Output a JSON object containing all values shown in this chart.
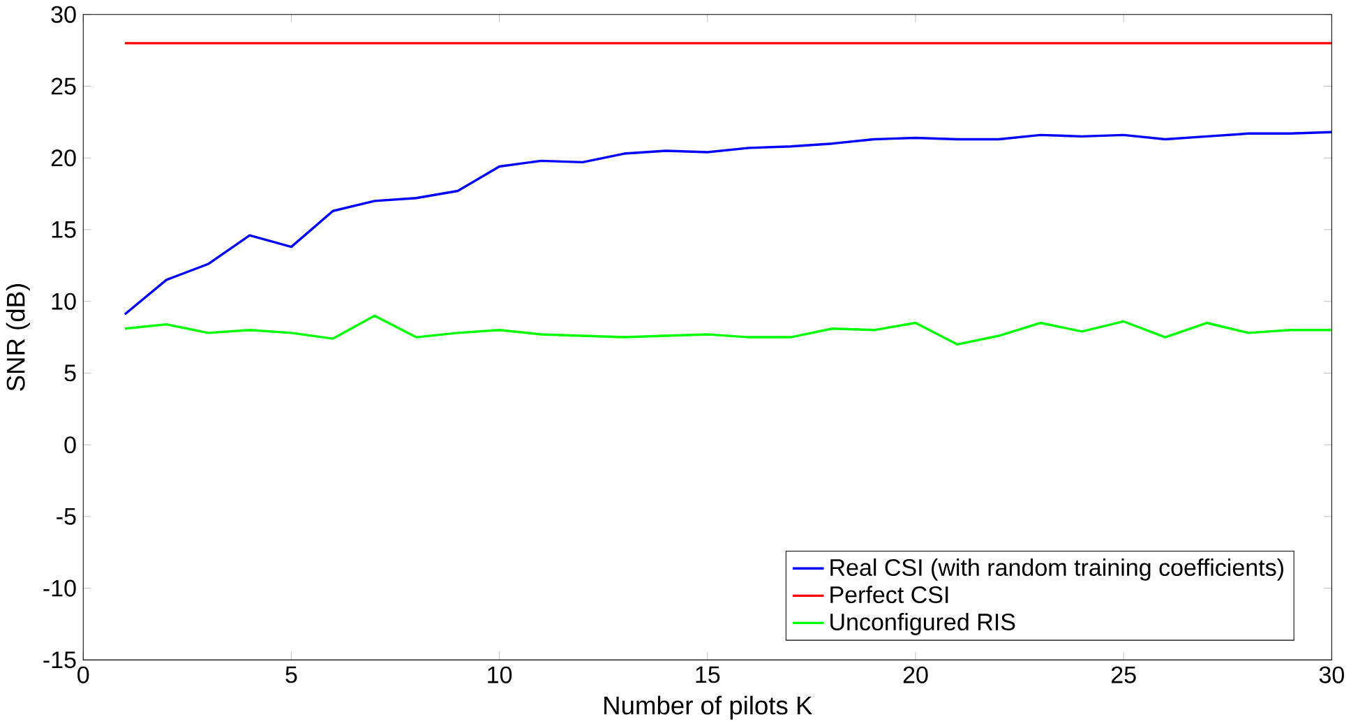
{
  "chart_data": {
    "type": "line",
    "xlabel": "Number of pilots K",
    "ylabel": "SNR (dB)",
    "x": [
      1,
      2,
      3,
      4,
      5,
      6,
      7,
      8,
      9,
      10,
      11,
      12,
      13,
      14,
      15,
      16,
      17,
      18,
      19,
      20,
      21,
      22,
      23,
      24,
      25,
      26,
      27,
      28,
      29,
      30
    ],
    "series": [
      {
        "name": "Real CSI (with random training coefficients)",
        "color": "#0000ff",
        "values": [
          9.1,
          11.5,
          12.6,
          14.6,
          13.8,
          16.3,
          17.0,
          17.2,
          17.7,
          19.4,
          19.8,
          19.7,
          20.3,
          20.5,
          20.4,
          20.7,
          20.8,
          21.0,
          21.3,
          21.4,
          21.3,
          21.3,
          21.6,
          21.5,
          21.6,
          21.3,
          21.5,
          21.7,
          21.7,
          21.8
        ]
      },
      {
        "name": "Perfect CSI",
        "color": "#ff0000",
        "values": [
          28,
          28,
          28,
          28,
          28,
          28,
          28,
          28,
          28,
          28,
          28,
          28,
          28,
          28,
          28,
          28,
          28,
          28,
          28,
          28,
          28,
          28,
          28,
          28,
          28,
          28,
          28,
          28,
          28,
          28
        ]
      },
      {
        "name": "Unconfigured RIS",
        "color": "#00ff00",
        "values": [
          8.1,
          8.4,
          7.8,
          8.0,
          7.8,
          7.4,
          9.0,
          7.5,
          7.8,
          8.0,
          7.7,
          7.6,
          7.5,
          7.6,
          7.7,
          7.5,
          7.5,
          8.1,
          8.0,
          8.5,
          7.0,
          7.6,
          8.5,
          7.9,
          8.6,
          7.5,
          8.5,
          7.8,
          8.0,
          8.0
        ]
      }
    ],
    "xlim": [
      0,
      30
    ],
    "ylim": [
      -15,
      30
    ],
    "xticks": [
      0,
      5,
      10,
      15,
      20,
      25,
      30
    ],
    "yticks": [
      -15,
      -10,
      -5,
      0,
      5,
      10,
      15,
      20,
      25,
      30
    ],
    "grid": false,
    "legend": "bottom right",
    "marker": "none",
    "line_style": "solid"
  }
}
